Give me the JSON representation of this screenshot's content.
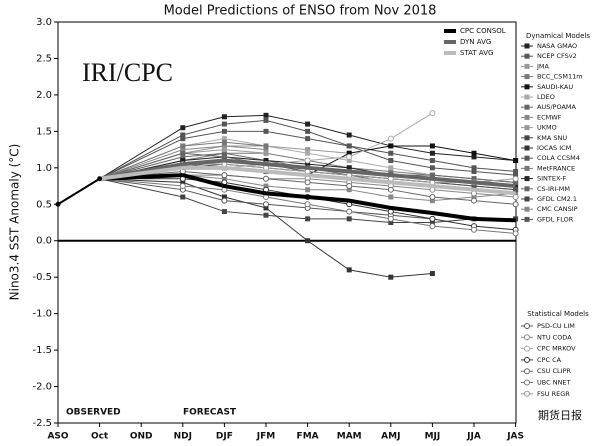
{
  "chart_data": {
    "type": "line",
    "title": "Model Predictions of ENSO from Nov 2018",
    "y_label": "Nino3.4 SST Anomaly (°C)",
    "annotations": {
      "source": "IRI/CPC",
      "observed": "OBSERVED",
      "forecast": "FORECAST",
      "watermark": "期货日报"
    },
    "legend_titles": {
      "dynamical": "Dynamical Models",
      "statistical": "Statistical Models"
    },
    "categories": [
      "ASO",
      "Oct",
      "OND",
      "NDJ",
      "DJF",
      "JFM",
      "FMA",
      "MAM",
      "AMJ",
      "MJJ",
      "JJA",
      "JAS"
    ],
    "ylim": [
      -2.5,
      3.0
    ],
    "yticks": [
      {
        "value": -2.5,
        "label": "-2.5"
      },
      {
        "value": -2,
        "label": "-2.0"
      },
      {
        "value": -1.5,
        "label": "-1.5"
      },
      {
        "value": -1,
        "label": "-1.0"
      },
      -0.5,
      {
        "value": 0,
        "label": "0.0"
      },
      0.5,
      {
        "value": 1,
        "label": "1.0"
      },
      1.5,
      {
        "value": 2,
        "label": "2.0"
      },
      2.5,
      {
        "value": 3,
        "label": "3.0"
      }
    ],
    "observed": {
      "color": "#000000",
      "values": [
        0.5,
        0.85,
        null,
        null,
        null,
        null,
        null,
        null,
        null,
        null,
        null,
        null
      ]
    },
    "series": [
      {
        "name": "CPC CONSOL",
        "group": "summary",
        "marker": "none",
        "width": 4,
        "color": "#000000",
        "values": [
          null,
          null,
          null,
          0.9,
          0.75,
          0.65,
          0.6,
          0.55,
          0.45,
          0.38,
          0.3,
          0.28
        ]
      },
      {
        "name": "DYN AVG",
        "group": "summary",
        "marker": "none",
        "width": 4,
        "color": "#666666",
        "values": [
          null,
          null,
          null,
          1.05,
          1.1,
          1.05,
          1.0,
          0.95,
          0.9,
          0.85,
          0.8,
          0.75
        ]
      },
      {
        "name": "STAT AVG",
        "group": "summary",
        "marker": "none",
        "width": 4,
        "color": "#bbbbbb",
        "values": [
          null,
          null,
          null,
          1.0,
          1.0,
          0.95,
          0.9,
          0.85,
          0.8,
          0.75,
          0.7,
          0.65
        ]
      },
      {
        "name": "NASA GMAO",
        "group": "dynamical",
        "marker": "square",
        "width": 1,
        "color": "#222222",
        "values": [
          null,
          null,
          null,
          1.55,
          1.7,
          1.72,
          1.6,
          1.45,
          1.3,
          1.2,
          1.15,
          1.1
        ]
      },
      {
        "name": "NCEP CFSv2",
        "group": "dynamical",
        "marker": "square",
        "width": 1,
        "color": "#555555",
        "values": [
          null,
          null,
          null,
          1.4,
          1.5,
          1.5,
          1.4,
          1.3,
          1.2,
          1.1,
          1.0,
          0.95
        ]
      },
      {
        "name": "JMA",
        "group": "dynamical",
        "marker": "square",
        "width": 1,
        "color": "#999999",
        "values": [
          null,
          null,
          null,
          1.2,
          1.3,
          1.3,
          1.25,
          1.2,
          null,
          null,
          null,
          null
        ]
      },
      {
        "name": "BCC_CSM11m",
        "group": "dynamical",
        "marker": "square",
        "width": 1,
        "color": "#777777",
        "values": [
          null,
          null,
          null,
          1.1,
          1.2,
          1.2,
          1.1,
          1.0,
          0.95,
          0.9,
          0.85,
          0.8
        ]
      },
      {
        "name": "SAUDI-KAU",
        "group": "dynamical",
        "marker": "square",
        "width": 1,
        "color": "#111111",
        "values": [
          null,
          null,
          null,
          1.0,
          1.0,
          0.95,
          0.9,
          1.2,
          1.3,
          1.3,
          1.2,
          1.1
        ]
      },
      {
        "name": "LDEO",
        "group": "dynamical",
        "marker": "square",
        "width": 1,
        "color": "#aaaaaa",
        "values": [
          null,
          null,
          null,
          1.3,
          1.4,
          1.3,
          1.2,
          1.1,
          1.0,
          0.9,
          0.85,
          0.8
        ]
      },
      {
        "name": "AUS/POAMA",
        "group": "dynamical",
        "marker": "square",
        "width": 1,
        "color": "#666666",
        "values": [
          null,
          null,
          null,
          1.15,
          1.2,
          1.1,
          1.0,
          0.9,
          0.8,
          null,
          null,
          null
        ]
      },
      {
        "name": "ECMWF",
        "group": "dynamical",
        "marker": "square",
        "width": 1,
        "color": "#888888",
        "values": [
          null,
          null,
          null,
          1.25,
          1.3,
          1.25,
          null,
          null,
          null,
          null,
          null,
          null
        ]
      },
      {
        "name": "UKMO",
        "group": "dynamical",
        "marker": "square",
        "width": 1,
        "color": "#999999",
        "values": [
          null,
          null,
          null,
          1.2,
          1.25,
          1.2,
          null,
          null,
          null,
          null,
          null,
          null
        ]
      },
      {
        "name": "KMA SNU",
        "group": "dynamical",
        "marker": "square",
        "width": 1,
        "color": "#444444",
        "values": [
          null,
          null,
          null,
          1.0,
          1.05,
          1.0,
          0.95,
          0.9,
          0.85,
          0.8,
          0.75,
          0.7
        ]
      },
      {
        "name": "IOCAS ICM",
        "group": "dynamical",
        "marker": "square",
        "width": 1,
        "color": "#333333",
        "values": [
          null,
          null,
          null,
          0.8,
          0.6,
          0.45,
          0.0,
          -0.4,
          -0.5,
          -0.45,
          null,
          null
        ]
      },
      {
        "name": "COLA CCSM4",
        "group": "dynamical",
        "marker": "square",
        "width": 1,
        "color": "#555555",
        "values": [
          null,
          null,
          null,
          1.45,
          1.6,
          1.65,
          1.5,
          1.3,
          1.1,
          1.0,
          0.95,
          0.9
        ]
      },
      {
        "name": "MetFRANCE",
        "group": "dynamical",
        "marker": "square",
        "width": 1,
        "color": "#777777",
        "values": [
          null,
          null,
          null,
          1.3,
          1.35,
          1.3,
          null,
          null,
          null,
          null,
          null,
          null
        ]
      },
      {
        "name": "SINTEX-F",
        "group": "dynamical",
        "marker": "square",
        "width": 1,
        "color": "#222222",
        "values": [
          null,
          null,
          null,
          1.1,
          1.15,
          1.1,
          1.05,
          1.0,
          0.9,
          0.85,
          0.8,
          0.75
        ]
      },
      {
        "name": "CS-IRI-MM",
        "group": "dynamical",
        "marker": "square",
        "width": 1,
        "color": "#666666",
        "values": [
          null,
          null,
          null,
          1.2,
          1.15,
          1.05,
          1.0,
          0.95,
          0.9,
          0.9,
          0.85,
          0.8
        ]
      },
      {
        "name": "GFDL CM2.1",
        "group": "dynamical",
        "marker": "square",
        "width": 1,
        "color": "#444444",
        "values": [
          null,
          null,
          null,
          0.6,
          0.4,
          0.35,
          0.3,
          0.3,
          0.25,
          0.25,
          0.3,
          0.3
        ]
      },
      {
        "name": "CMC CANSIP",
        "group": "dynamical",
        "marker": "square",
        "width": 1,
        "color": "#888888",
        "values": [
          null,
          null,
          null,
          0.9,
          0.85,
          0.75,
          0.7,
          0.7,
          0.6,
          0.55,
          0.6,
          0.65
        ]
      },
      {
        "name": "GFDL FLOR",
        "group": "dynamical",
        "marker": "square",
        "width": 1,
        "color": "#555555",
        "values": [
          null,
          null,
          null,
          1.0,
          1.1,
          1.05,
          0.95,
          0.9,
          0.85,
          0.8,
          0.75,
          0.7
        ]
      },
      {
        "name": "PSD-CU LIM",
        "group": "statistical",
        "marker": "circle",
        "width": 1,
        "color": "#555555",
        "values": [
          null,
          null,
          null,
          0.7,
          0.55,
          0.5,
          0.45,
          0.4,
          0.35,
          0.3,
          null,
          null
        ]
      },
      {
        "name": "NTU CODA",
        "group": "statistical",
        "marker": "circle",
        "width": 1,
        "color": "#888888",
        "values": [
          null,
          null,
          null,
          0.9,
          0.9,
          0.85,
          0.85,
          0.8,
          0.75,
          0.7,
          0.65,
          0.6
        ]
      },
      {
        "name": "CPC MRKOV",
        "group": "statistical",
        "marker": "circle",
        "width": 1,
        "color": "#aaaaaa",
        "values": [
          null,
          null,
          null,
          1.0,
          1.0,
          1.05,
          1.1,
          1.15,
          1.4,
          1.75,
          null,
          null
        ]
      },
      {
        "name": "CPC CA",
        "group": "statistical",
        "marker": "circle",
        "width": 1,
        "color": "#333333",
        "values": [
          null,
          null,
          null,
          0.85,
          0.8,
          0.7,
          0.6,
          0.5,
          0.4,
          0.3,
          0.2,
          0.15
        ]
      },
      {
        "name": "CSU CLIPR",
        "group": "statistical",
        "marker": "circle",
        "width": 1,
        "color": "#666666",
        "values": [
          null,
          null,
          null,
          0.95,
          0.9,
          0.85,
          0.8,
          0.75,
          0.7,
          0.6,
          0.55,
          0.5
        ]
      },
      {
        "name": "UBC NNET",
        "group": "statistical",
        "marker": "circle",
        "width": 1,
        "color": "#777777",
        "values": [
          null,
          null,
          null,
          0.75,
          0.7,
          0.6,
          0.5,
          0.4,
          0.3,
          0.2,
          0.15,
          0.1
        ]
      },
      {
        "name": "FSU REGR",
        "group": "statistical",
        "marker": "circle",
        "width": 1,
        "color": "#999999",
        "values": [
          null,
          null,
          null,
          1.05,
          1.05,
          1.0,
          0.95,
          0.9,
          0.85,
          0.8,
          0.8,
          0.85
        ]
      }
    ]
  }
}
